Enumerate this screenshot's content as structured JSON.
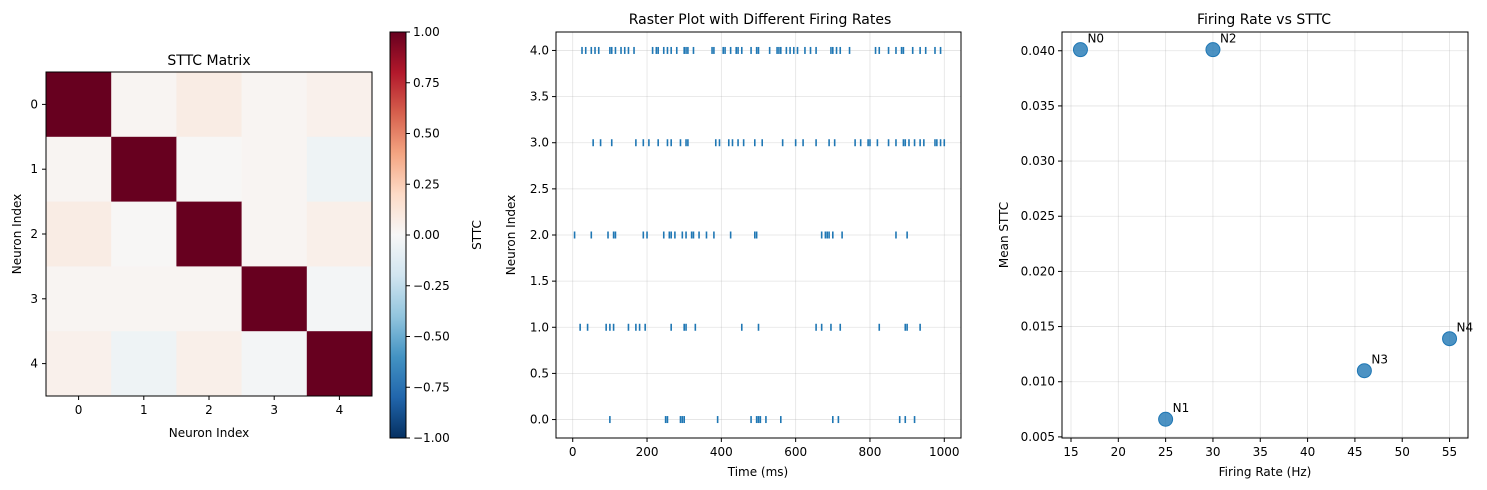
{
  "chart_data": [
    {
      "type": "heatmap",
      "title": "STTC Matrix",
      "xlabel": "Neuron Index",
      "ylabel": "Neuron Index",
      "x_ticks": [
        "0",
        "1",
        "2",
        "3",
        "4"
      ],
      "y_ticks": [
        "0",
        "1",
        "2",
        "3",
        "4"
      ],
      "values": [
        [
          1.0,
          0.02,
          0.08,
          0.02,
          0.05
        ],
        [
          0.02,
          1.0,
          0.01,
          0.02,
          -0.05
        ],
        [
          0.08,
          0.01,
          1.0,
          0.02,
          0.06
        ],
        [
          0.02,
          0.02,
          0.02,
          1.0,
          -0.02
        ],
        [
          0.05,
          -0.05,
          0.06,
          -0.02,
          1.0
        ]
      ],
      "colormap": "RdBu_r",
      "vmin": -1.0,
      "vmax": 1.0,
      "colorbar_label": "STTC",
      "colorbar_ticks": [
        "−1.00",
        "−0.75",
        "−0.50",
        "−0.25",
        "0.00",
        "0.25",
        "0.50",
        "0.75",
        "1.00"
      ],
      "colors": {
        "pos": "#67001f",
        "neg": "#053061",
        "mid": "#f7f7f7"
      }
    },
    {
      "type": "scatter",
      "title": "Raster Plot with Different Firing Rates",
      "xlabel": "Time (ms)",
      "ylabel": "Neuron Index",
      "xlim": [
        -45,
        1045
      ],
      "ylim": [
        -0.2,
        4.2
      ],
      "x_ticks": [
        "0",
        "200",
        "400",
        "600",
        "800",
        "1000"
      ],
      "y_ticks": [
        "0.0",
        "0.5",
        "1.0",
        "1.5",
        "2.0",
        "2.5",
        "3.0",
        "3.5",
        "4.0"
      ],
      "grid": true,
      "marker_color": "#1f77b4",
      "series": [
        {
          "neuron": 0,
          "spikes": [
            100,
            250,
            255,
            290,
            295,
            300,
            390,
            480,
            495,
            500,
            505,
            520,
            560,
            700,
            715,
            880,
            895,
            920
          ]
        },
        {
          "neuron": 1,
          "spikes": [
            20,
            40,
            90,
            100,
            110,
            150,
            170,
            180,
            195,
            265,
            300,
            305,
            330,
            455,
            500,
            655,
            670,
            695,
            720,
            825,
            895,
            900,
            935
          ]
        },
        {
          "neuron": 2,
          "spikes": [
            5,
            50,
            95,
            110,
            115,
            190,
            200,
            245,
            260,
            265,
            275,
            295,
            305,
            320,
            325,
            340,
            360,
            380,
            425,
            490,
            495,
            670,
            680,
            685,
            690,
            700,
            725,
            870,
            900
          ]
        },
        {
          "neuron": 3,
          "spikes": [
            55,
            75,
            105,
            170,
            190,
            205,
            230,
            255,
            265,
            290,
            305,
            310,
            385,
            395,
            420,
            430,
            445,
            460,
            490,
            510,
            565,
            600,
            620,
            655,
            690,
            705,
            760,
            775,
            795,
            800,
            820,
            850,
            870,
            890,
            895,
            905,
            920,
            935,
            945,
            975,
            980,
            990,
            1000
          ]
        },
        {
          "neuron": 4,
          "spikes": [
            25,
            35,
            50,
            60,
            70,
            100,
            105,
            115,
            130,
            140,
            150,
            165,
            215,
            225,
            230,
            245,
            255,
            265,
            280,
            300,
            305,
            310,
            325,
            375,
            380,
            405,
            410,
            425,
            440,
            445,
            455,
            480,
            495,
            500,
            530,
            550,
            555,
            560,
            575,
            585,
            595,
            605,
            625,
            640,
            655,
            695,
            700,
            710,
            720,
            745,
            815,
            825,
            850,
            870,
            885,
            890,
            915,
            935,
            950,
            975,
            990
          ]
        }
      ]
    },
    {
      "type": "scatter",
      "title": "Firing Rate vs STTC",
      "xlabel": "Firing Rate (Hz)",
      "ylabel": "Mean STTC",
      "xlim": [
        14.05,
        56.95
      ],
      "ylim": [
        0.0049,
        0.0417
      ],
      "x_ticks": [
        "15",
        "20",
        "25",
        "30",
        "35",
        "40",
        "45",
        "50",
        "55"
      ],
      "y_ticks": [
        "0.005",
        "0.010",
        "0.015",
        "0.020",
        "0.025",
        "0.030",
        "0.035",
        "0.040"
      ],
      "grid": true,
      "marker_color": "#1f77b4",
      "points": [
        {
          "label": "N0",
          "x": 16,
          "y": 0.0401
        },
        {
          "label": "N1",
          "x": 25,
          "y": 0.0066
        },
        {
          "label": "N2",
          "x": 30,
          "y": 0.0401
        },
        {
          "label": "N3",
          "x": 46,
          "y": 0.011
        },
        {
          "label": "N4",
          "x": 55,
          "y": 0.0139
        }
      ]
    }
  ]
}
